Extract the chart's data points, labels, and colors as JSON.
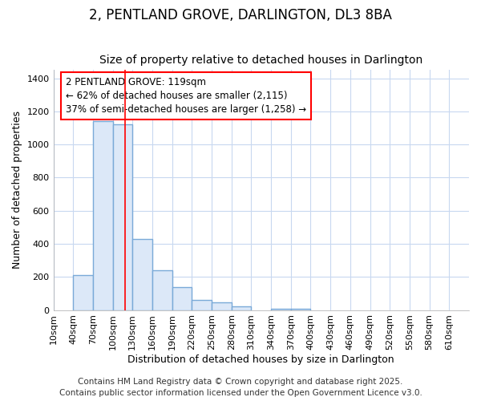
{
  "title1": "2, PENTLAND GROVE, DARLINGTON, DL3 8BA",
  "title2": "Size of property relative to detached houses in Darlington",
  "xlabel": "Distribution of detached houses by size in Darlington",
  "ylabel": "Number of detached properties",
  "bar_edges": [
    10,
    40,
    70,
    100,
    130,
    160,
    190,
    220,
    250,
    280,
    310,
    340,
    370,
    400,
    430,
    460,
    490,
    520,
    550,
    580,
    610
  ],
  "bar_heights": [
    0,
    210,
    1140,
    1120,
    430,
    240,
    140,
    60,
    45,
    20,
    0,
    10,
    10,
    0,
    0,
    0,
    0,
    0,
    0,
    0,
    0
  ],
  "bar_color": "#dce8f8",
  "bar_edge_color": "#7aaad8",
  "bar_edge_width": 1.0,
  "red_line_x": 119,
  "ylim": [
    0,
    1450
  ],
  "yticks": [
    0,
    200,
    400,
    600,
    800,
    1000,
    1200,
    1400
  ],
  "annotation_text": "2 PENTLAND GROVE: 119sqm\n← 62% of detached houses are smaller (2,115)\n37% of semi-detached houses are larger (1,258) →",
  "background_color": "#ffffff",
  "grid_color": "#c8d8f0",
  "tick_labels": [
    "10sqm",
    "40sqm",
    "70sqm",
    "100sqm",
    "130sqm",
    "160sqm",
    "190sqm",
    "220sqm",
    "250sqm",
    "280sqm",
    "310sqm",
    "340sqm",
    "370sqm",
    "400sqm",
    "430sqm",
    "460sqm",
    "490sqm",
    "520sqm",
    "550sqm",
    "580sqm",
    "610sqm"
  ],
  "footer1": "Contains HM Land Registry data © Crown copyright and database right 2025.",
  "footer2": "Contains public sector information licensed under the Open Government Licence v3.0.",
  "title_fontsize": 12,
  "subtitle_fontsize": 10,
  "axis_label_fontsize": 9,
  "tick_fontsize": 8,
  "annotation_fontsize": 8.5,
  "footer_fontsize": 7.5
}
